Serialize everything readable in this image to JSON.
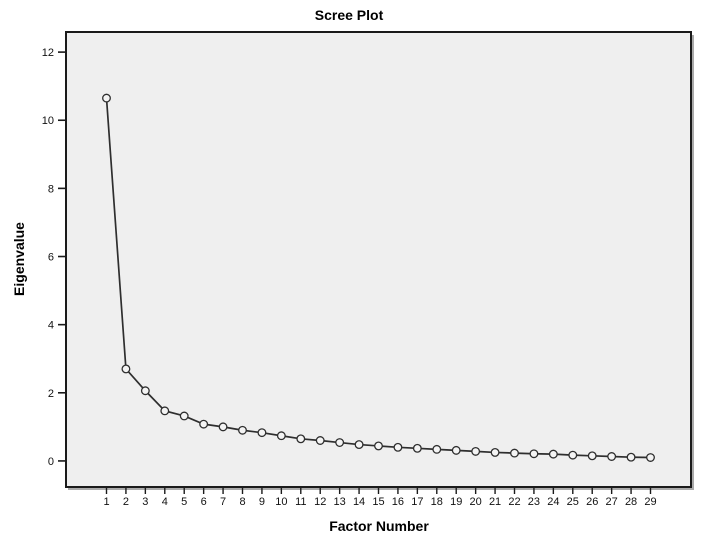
{
  "chart_data": {
    "type": "line",
    "title": "Scree Plot",
    "xlabel": "Factor Number",
    "ylabel": "Eigenvalue",
    "x": [
      1,
      2,
      3,
      4,
      5,
      6,
      7,
      8,
      9,
      10,
      11,
      12,
      13,
      14,
      15,
      16,
      17,
      18,
      19,
      20,
      21,
      22,
      23,
      24,
      25,
      26,
      27,
      28,
      29
    ],
    "values": [
      10.65,
      2.7,
      2.06,
      1.47,
      1.32,
      1.08,
      1.0,
      0.9,
      0.83,
      0.74,
      0.65,
      0.6,
      0.54,
      0.48,
      0.44,
      0.4,
      0.37,
      0.34,
      0.31,
      0.28,
      0.25,
      0.23,
      0.21,
      0.2,
      0.17,
      0.15,
      0.13,
      0.11,
      0.1
    ],
    "yticks": [
      0,
      2,
      4,
      6,
      8,
      10,
      12
    ],
    "ylim": [
      -0.765,
      12.59
    ],
    "grid": false,
    "legend": "none",
    "marker": "open-circle",
    "line_color": "#2e2e2e",
    "marker_fill": "#f4f4f4",
    "plot_bg": "#efefef",
    "plot_border_color": "#1a1a1a",
    "shadow_color": "#aaaaaa",
    "tick_color": "#1a1a1a"
  }
}
